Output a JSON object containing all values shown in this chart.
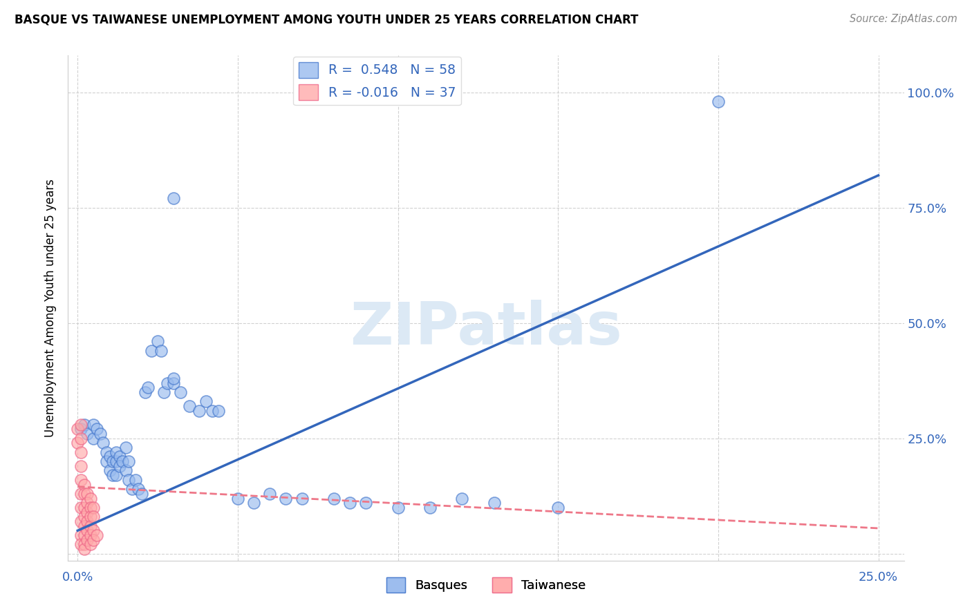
{
  "title": "BASQUE VS TAIWANESE UNEMPLOYMENT AMONG YOUTH UNDER 25 YEARS CORRELATION CHART",
  "source": "Source: ZipAtlas.com",
  "ylabel": "Unemployment Among Youth under 25 years",
  "xlim": [
    -0.003,
    0.258
  ],
  "ylim": [
    -0.015,
    1.08
  ],
  "x_ticks": [
    0.0,
    0.05,
    0.1,
    0.15,
    0.2,
    0.25
  ],
  "y_ticks": [
    0.0,
    0.25,
    0.5,
    0.75,
    1.0
  ],
  "basque_R": 0.548,
  "basque_N": 58,
  "taiwanese_R": -0.016,
  "taiwanese_N": 37,
  "basque_color": "#99BBEE",
  "basque_edge_color": "#4477CC",
  "taiwanese_color": "#FFAAAA",
  "taiwanese_edge_color": "#EE6688",
  "basque_line_color": "#3366BB",
  "taiwanese_line_color": "#EE7788",
  "watermark_color": "#DCE9F5",
  "basque_line_x0": 0.0,
  "basque_line_y0": 0.05,
  "basque_line_x1": 0.25,
  "basque_line_y1": 0.82,
  "taiwanese_line_x0": 0.0,
  "taiwanese_line_y0": 0.145,
  "taiwanese_line_x1": 0.25,
  "taiwanese_line_y1": 0.055,
  "basque_points_x": [
    0.001,
    0.002,
    0.003,
    0.005,
    0.005,
    0.006,
    0.007,
    0.008,
    0.009,
    0.009,
    0.01,
    0.01,
    0.011,
    0.011,
    0.012,
    0.012,
    0.012,
    0.013,
    0.013,
    0.014,
    0.015,
    0.015,
    0.016,
    0.016,
    0.017,
    0.018,
    0.019,
    0.02,
    0.021,
    0.022,
    0.023,
    0.025,
    0.026,
    0.027,
    0.028,
    0.03,
    0.03,
    0.032,
    0.035,
    0.038,
    0.04,
    0.042,
    0.044,
    0.05,
    0.055,
    0.06,
    0.065,
    0.07,
    0.08,
    0.085,
    0.09,
    0.1,
    0.11,
    0.12,
    0.13,
    0.03,
    0.2,
    0.15
  ],
  "basque_points_y": [
    0.27,
    0.28,
    0.26,
    0.28,
    0.25,
    0.27,
    0.26,
    0.24,
    0.22,
    0.2,
    0.21,
    0.18,
    0.2,
    0.17,
    0.2,
    0.22,
    0.17,
    0.21,
    0.19,
    0.2,
    0.23,
    0.18,
    0.2,
    0.16,
    0.14,
    0.16,
    0.14,
    0.13,
    0.35,
    0.36,
    0.44,
    0.46,
    0.44,
    0.35,
    0.37,
    0.37,
    0.38,
    0.35,
    0.32,
    0.31,
    0.33,
    0.31,
    0.31,
    0.12,
    0.11,
    0.13,
    0.12,
    0.12,
    0.12,
    0.11,
    0.11,
    0.1,
    0.1,
    0.12,
    0.11,
    0.77,
    0.98,
    0.1
  ],
  "taiwanese_points_x": [
    0.0,
    0.0,
    0.001,
    0.001,
    0.001,
    0.001,
    0.001,
    0.001,
    0.001,
    0.001,
    0.001,
    0.001,
    0.002,
    0.002,
    0.002,
    0.002,
    0.002,
    0.002,
    0.002,
    0.002,
    0.003,
    0.003,
    0.003,
    0.003,
    0.003,
    0.003,
    0.004,
    0.004,
    0.004,
    0.004,
    0.004,
    0.004,
    0.005,
    0.005,
    0.005,
    0.005,
    0.006
  ],
  "taiwanese_points_y": [
    0.27,
    0.24,
    0.28,
    0.25,
    0.22,
    0.19,
    0.16,
    0.13,
    0.1,
    0.07,
    0.04,
    0.02,
    0.15,
    0.13,
    0.1,
    0.08,
    0.06,
    0.04,
    0.02,
    0.01,
    0.13,
    0.11,
    0.09,
    0.07,
    0.05,
    0.03,
    0.12,
    0.1,
    0.08,
    0.06,
    0.04,
    0.02,
    0.1,
    0.08,
    0.05,
    0.03,
    0.04
  ]
}
